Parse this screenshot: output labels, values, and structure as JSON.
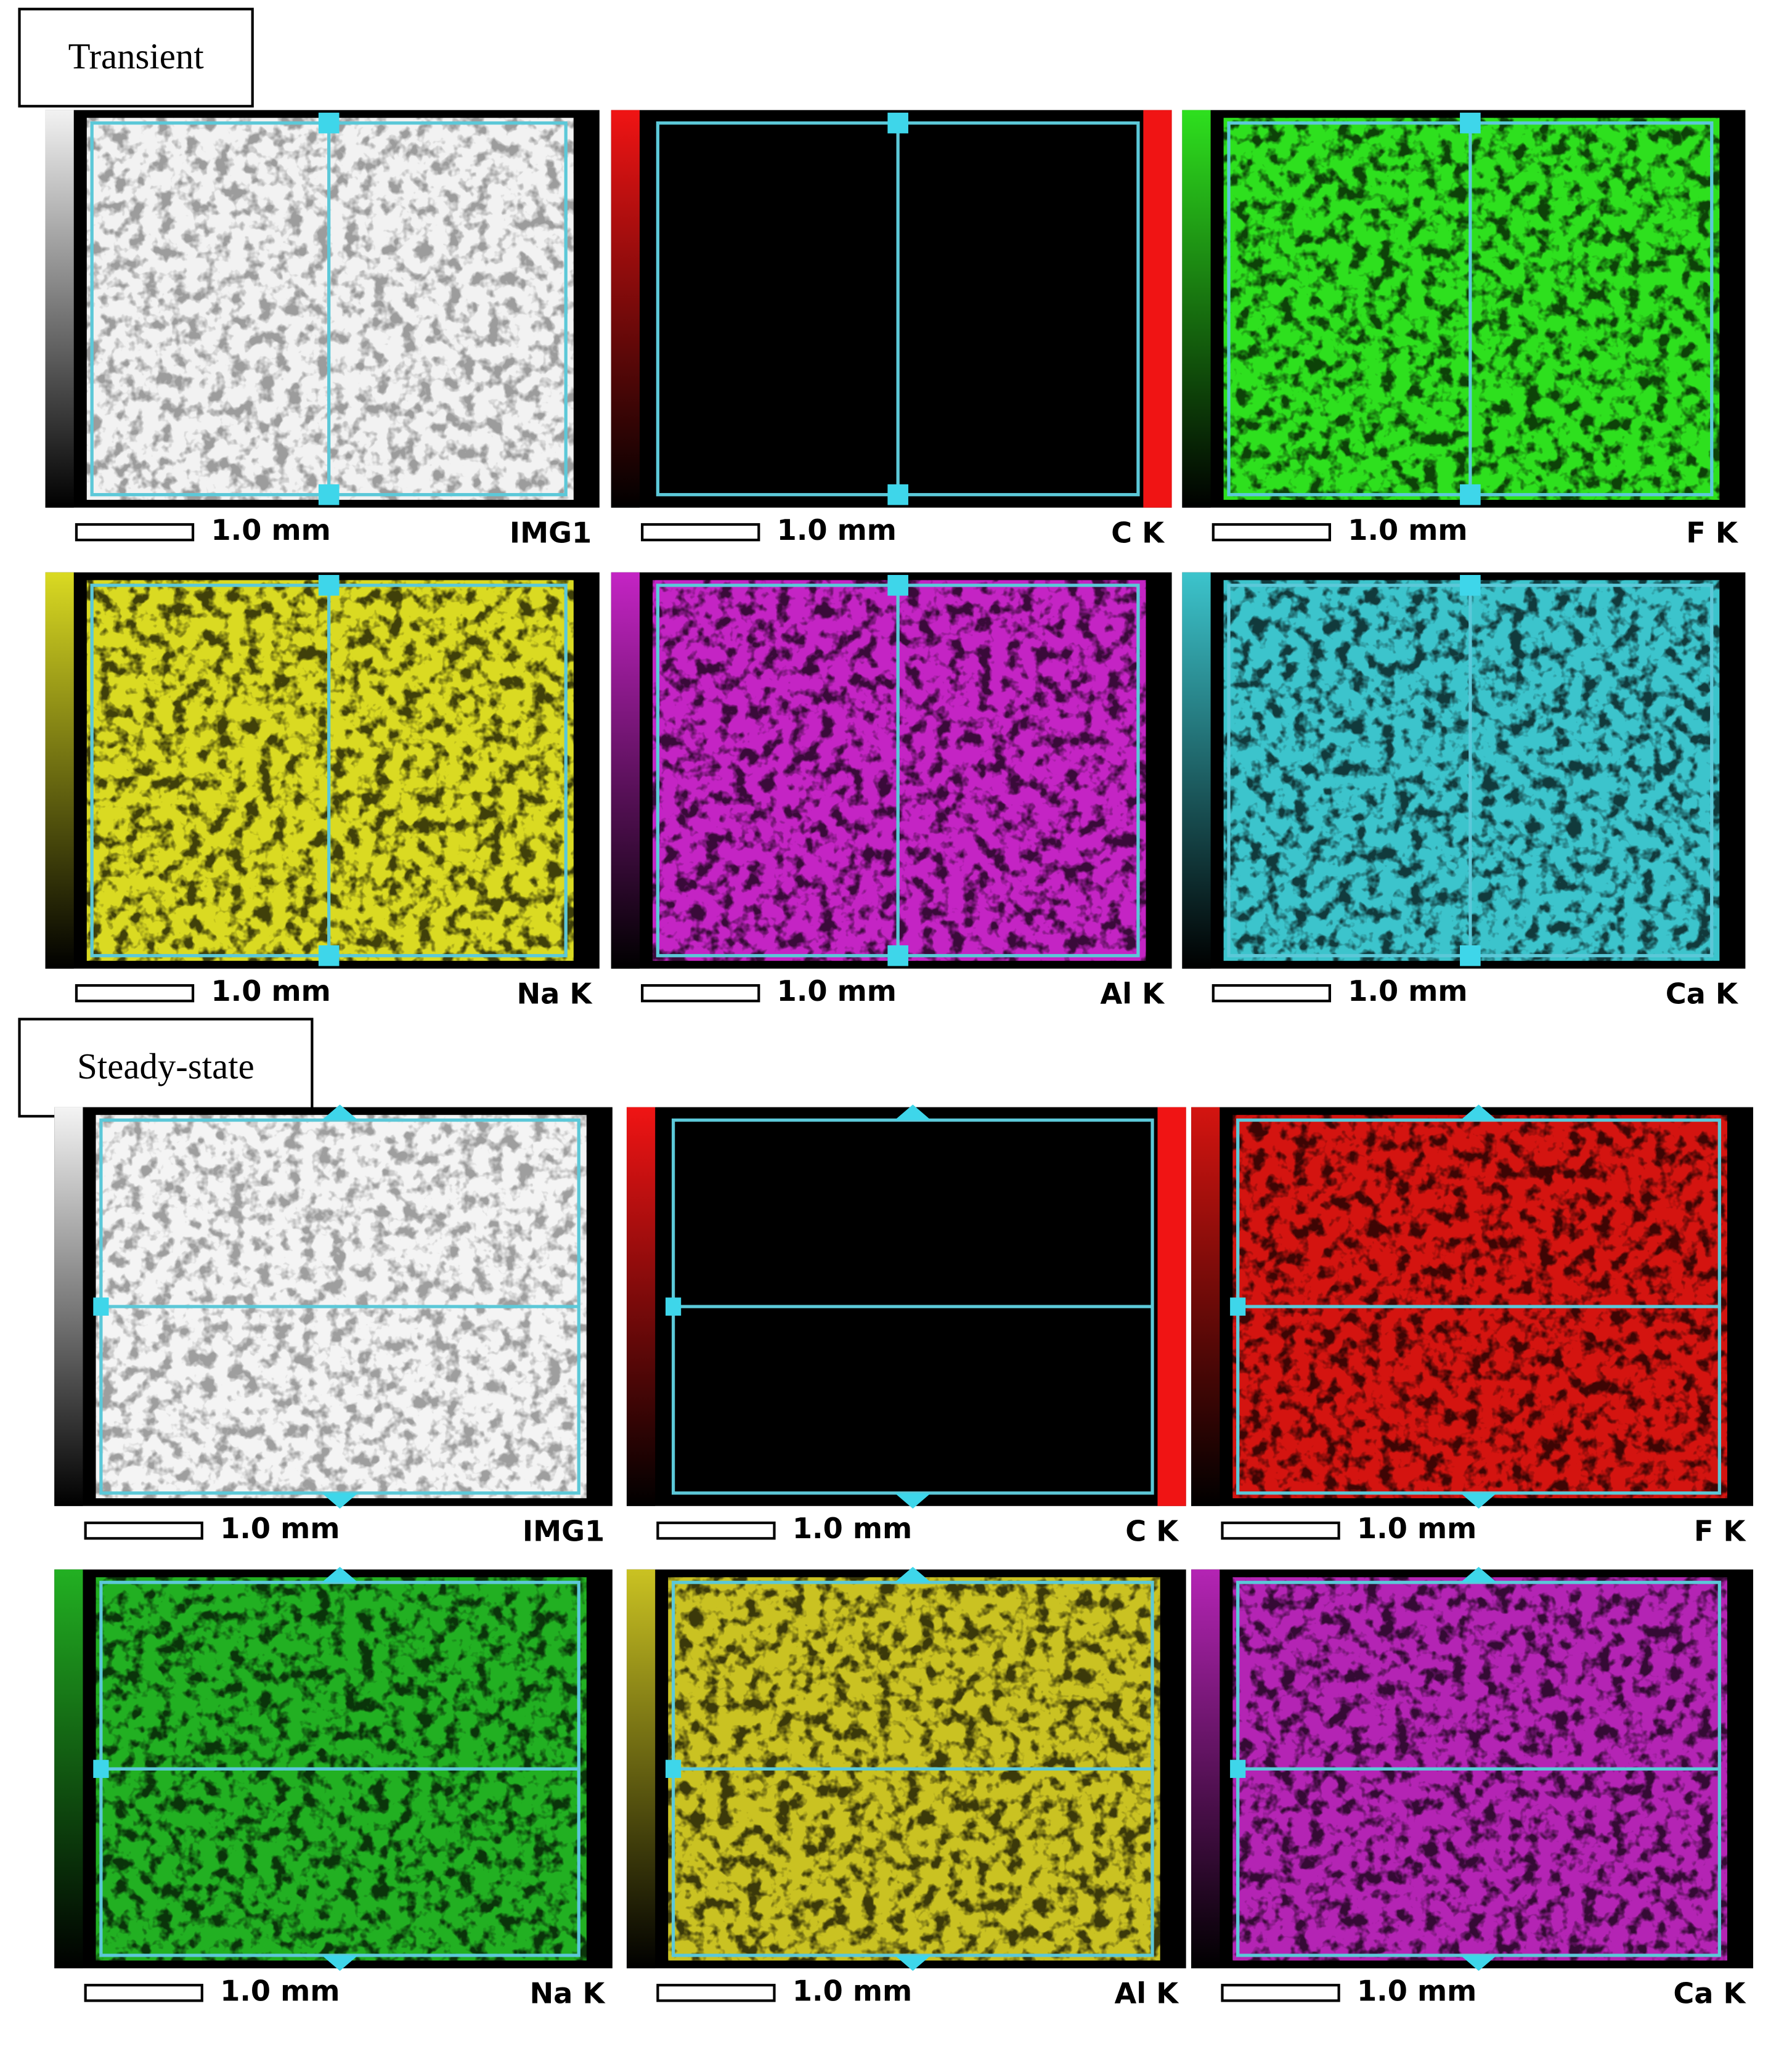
{
  "sections": [
    {
      "label": "Transient",
      "panels": [
        {
          "scale": "1.0 mm",
          "element": "IMG1"
        },
        {
          "scale": "1.0 mm",
          "element": "C K"
        },
        {
          "scale": "1.0 mm",
          "element": "F K"
        },
        {
          "scale": "1.0 mm",
          "element": "Na K"
        },
        {
          "scale": "1.0 mm",
          "element": "Al K"
        },
        {
          "scale": "1.0 mm",
          "element": "Ca K"
        }
      ]
    },
    {
      "label": "Steady-state",
      "panels": [
        {
          "scale": "1.0 mm",
          "element": "IMG1"
        },
        {
          "scale": "1.0 mm",
          "element": "C K"
        },
        {
          "scale": "1.0 mm",
          "element": "F K"
        },
        {
          "scale": "1.0 mm",
          "element": "Na K"
        },
        {
          "scale": "1.0 mm",
          "element": "Al K"
        },
        {
          "scale": "1.0 mm",
          "element": "Ca K"
        }
      ]
    }
  ]
}
